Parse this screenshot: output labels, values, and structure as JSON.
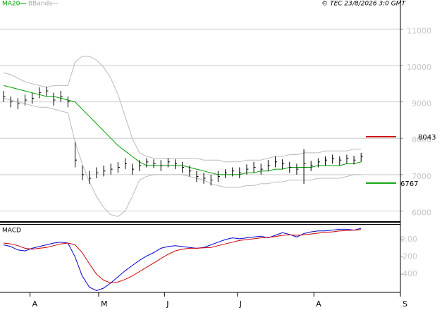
{
  "chart_data": {
    "type": "stock",
    "legend": [
      "MA20",
      "BBands"
    ],
    "credit": "© TEC 23/8/2026 3:0 GMT",
    "xlim": [
      0,
      56
    ],
    "xticks": [
      {
        "value": 4.2,
        "label": "A"
      },
      {
        "value": 13.8,
        "label": "M"
      },
      {
        "value": 23,
        "label": "J"
      },
      {
        "value": 33.2,
        "label": "J"
      },
      {
        "value": 43.9,
        "label": "A"
      },
      {
        "value": 56,
        "label": "S"
      }
    ],
    "price": {
      "ylim": [
        5700,
        11800
      ],
      "yticks": [
        6000,
        7000,
        8000,
        9000,
        10000,
        11000
      ],
      "bar_color": "#000000",
      "high": [
        9300,
        9150,
        9100,
        9200,
        9250,
        9400,
        9420,
        9250,
        9300,
        9150,
        7900,
        7250,
        7100,
        7200,
        7250,
        7300,
        7350,
        7450,
        7300,
        7400,
        7450,
        7420,
        7400,
        7450,
        7420,
        7350,
        7250,
        7100,
        7050,
        7000,
        7100,
        7150,
        7200,
        7200,
        7280,
        7350,
        7300,
        7400,
        7500,
        7420,
        7350,
        7300,
        7700,
        7380,
        7450,
        7500,
        7550,
        7500,
        7550,
        7520,
        7600
      ],
      "low": [
        9000,
        8850,
        8800,
        8900,
        8950,
        9100,
        9150,
        8900,
        9000,
        8850,
        7200,
        6850,
        6750,
        6900,
        6950,
        7000,
        7050,
        7150,
        7000,
        7100,
        7200,
        7180,
        7100,
        7200,
        7150,
        7050,
        6950,
        6800,
        6750,
        6700,
        6800,
        6900,
        6950,
        6900,
        7000,
        7050,
        7000,
        7100,
        7200,
        7150,
        7050,
        7000,
        6750,
        7100,
        7200,
        7250,
        7300,
        7250,
        7300,
        7280,
        7350
      ],
      "close": [
        9150,
        9000,
        8950,
        9050,
        9100,
        9250,
        9300,
        9050,
        9150,
        9000,
        7400,
        7000,
        6900,
        7050,
        7100,
        7150,
        7200,
        7300,
        7150,
        7250,
        7350,
        7300,
        7250,
        7350,
        7300,
        7200,
        7100,
        6950,
        6900,
        6850,
        6950,
        7050,
        7100,
        7050,
        7150,
        7200,
        7150,
        7250,
        7350,
        7300,
        7200,
        7150,
        7300,
        7250,
        7350,
        7400,
        7450,
        7400,
        7450,
        7400,
        7500
      ],
      "ma20": {
        "name": "MA20",
        "color": "#00a000",
        "values": [
          9450,
          9400,
          9350,
          9300,
          9250,
          9200,
          9150,
          9150,
          9100,
          9050,
          9000,
          8800,
          8600,
          8400,
          8200,
          8000,
          7800,
          7650,
          7500,
          7350,
          7250,
          7250,
          7250,
          7250,
          7250,
          7250,
          7200,
          7150,
          7100,
          7050,
          7000,
          7000,
          7000,
          7000,
          7050,
          7050,
          7100,
          7100,
          7150,
          7150,
          7200,
          7200,
          7200,
          7200,
          7250,
          7250,
          7250,
          7250,
          7300,
          7300,
          7350
        ]
      },
      "bands_color": "#bbbbbb",
      "upper": [
        9800,
        9750,
        9650,
        9550,
        9500,
        9450,
        9400,
        9450,
        9450,
        9450,
        10100,
        10250,
        10250,
        10150,
        9950,
        9650,
        9200,
        8600,
        8000,
        7600,
        7500,
        7450,
        7450,
        7450,
        7450,
        7450,
        7450,
        7450,
        7400,
        7400,
        7400,
        7350,
        7350,
        7350,
        7400,
        7400,
        7400,
        7450,
        7500,
        7500,
        7550,
        7550,
        7600,
        7600,
        7600,
        7650,
        7650,
        7650,
        7650,
        7700,
        7700
      ],
      "lower": [
        9100,
        9050,
        9000,
        8950,
        8900,
        8850,
        8850,
        8800,
        8750,
        8700,
        7900,
        7300,
        6800,
        6400,
        6100,
        5900,
        5850,
        6000,
        6400,
        6850,
        6950,
        7000,
        7000,
        7000,
        7000,
        7000,
        6950,
        6900,
        6850,
        6750,
        6700,
        6650,
        6650,
        6650,
        6700,
        6700,
        6750,
        6750,
        6800,
        6800,
        6850,
        6850,
        6850,
        6850,
        6900,
        6900,
        6900,
        6900,
        6950,
        7000,
        7000
      ],
      "levels": [
        {
          "value": 8043,
          "color": "#cc0000"
        },
        {
          "value": 6767,
          "color": "#00a000"
        }
      ]
    },
    "macd": {
      "title": "MACD",
      "ylim": [
        -610,
        180
      ],
      "yticks": [
        {
          "value": 0,
          "label": "0.00"
        },
        -200,
        -400
      ],
      "series": [
        {
          "color": "#0000cc",
          "values": [
            -60,
            -80,
            -120,
            -130,
            -100,
            -80,
            -60,
            -40,
            -30,
            -40,
            -200,
            -420,
            -550,
            -590,
            -560,
            -500,
            -430,
            -360,
            -300,
            -240,
            -190,
            -150,
            -100,
            -80,
            -70,
            -80,
            -90,
            -100,
            -90,
            -60,
            -30,
            0,
            20,
            10,
            20,
            30,
            40,
            20,
            50,
            80,
            60,
            30,
            70,
            90,
            100,
            100,
            110,
            120,
            120,
            110,
            130
          ]
        },
        {
          "color": "#cc0000",
          "values": [
            -40,
            -50,
            -70,
            -100,
            -110,
            -100,
            -90,
            -70,
            -50,
            -40,
            -60,
            -150,
            -280,
            -400,
            -470,
            -500,
            -490,
            -460,
            -420,
            -370,
            -320,
            -270,
            -220,
            -170,
            -130,
            -110,
            -100,
            -100,
            -95,
            -90,
            -70,
            -50,
            -30,
            -10,
            0,
            10,
            20,
            25,
            35,
            50,
            55,
            50,
            55,
            65,
            75,
            85,
            90,
            100,
            105,
            110,
            115
          ]
        }
      ]
    }
  }
}
